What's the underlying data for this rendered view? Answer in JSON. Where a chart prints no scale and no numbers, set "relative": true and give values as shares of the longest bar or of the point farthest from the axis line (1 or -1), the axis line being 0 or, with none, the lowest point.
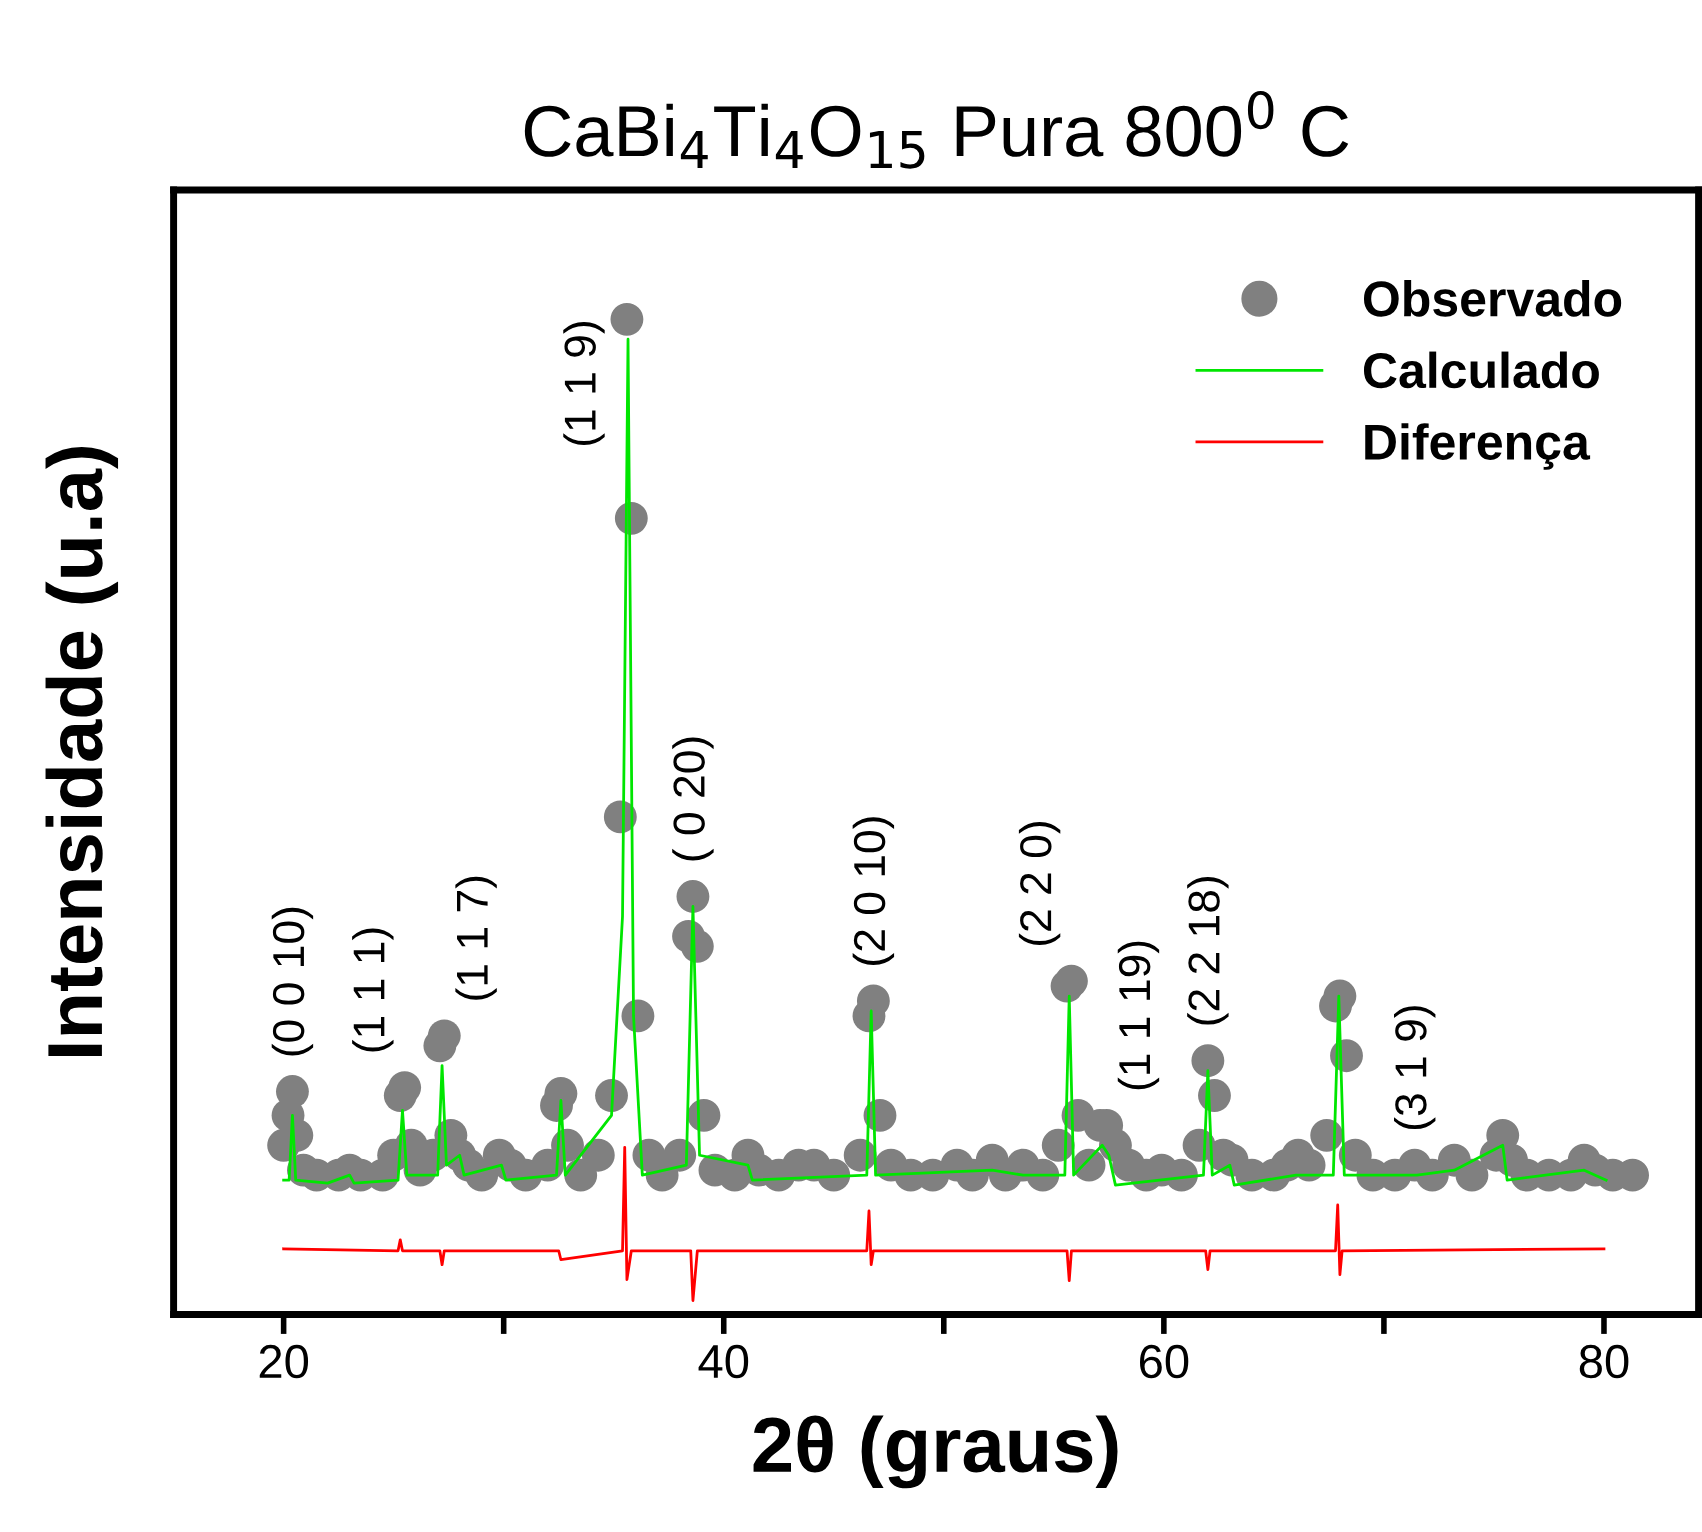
{
  "chart_data": {
    "type": "line",
    "title": "CaBi$_{4}$Ti$_{4}$O$_{15}$ Pura 800$^{0}$ C",
    "xlabel": "2θ (graus)",
    "ylabel": "Intensidade (u.a)",
    "relative": true,
    "xlim": [
      15,
      84.3
    ],
    "xticks": [
      20,
      {
        "value": 30,
        "label": null
      },
      40,
      {
        "value": 50,
        "label": null
      },
      60,
      {
        "value": 70,
        "label": null
      },
      80
    ],
    "tick_labels": "x",
    "grid": false,
    "legend": "top right",
    "series": [
      {
        "name": "Observado",
        "type": "scatter",
        "marker": "circle",
        "color": "#808080",
        "x": [
          20.0,
          20.2,
          20.4,
          20.6,
          20.9,
          21.5,
          22.5,
          23.0,
          23.5,
          24.5,
          25.0,
          25.3,
          25.5,
          25.8,
          26.2,
          26.8,
          27.1,
          27.3,
          27.6,
          28.0,
          28.4,
          29.0,
          29.8,
          30.3,
          31.0,
          32.0,
          32.4,
          32.6,
          32.9,
          33.5,
          34.3,
          34.9,
          35.3,
          35.6,
          35.8,
          36.1,
          36.6,
          37.2,
          38.0,
          38.4,
          38.6,
          38.8,
          39.1,
          39.6,
          40.5,
          41.1,
          41.6,
          42.5,
          43.4,
          44.1,
          45.0,
          46.2,
          46.6,
          46.8,
          47.1,
          47.6,
          48.5,
          49.5,
          50.6,
          51.3,
          52.2,
          52.8,
          53.6,
          54.5,
          55.2,
          55.6,
          55.8,
          56.1,
          56.6,
          57.1,
          57.4,
          57.8,
          58.4,
          59.2,
          59.9,
          60.8,
          61.6,
          62.0,
          62.3,
          62.7,
          63.1,
          64.0,
          65.0,
          65.6,
          66.1,
          66.6,
          67.4,
          67.8,
          68.0,
          68.3,
          68.7,
          69.5,
          70.5,
          71.4,
          72.2,
          73.2,
          74.0,
          75.1,
          75.4,
          75.8,
          76.5,
          77.5,
          78.5,
          79.1,
          79.6,
          80.4,
          81.3
        ],
        "values": [
          0.17,
          0.2,
          0.224,
          0.18,
          0.145,
          0.14,
          0.14,
          0.145,
          0.14,
          0.14,
          0.16,
          0.22,
          0.228,
          0.17,
          0.145,
          0.16,
          0.27,
          0.28,
          0.18,
          0.16,
          0.15,
          0.14,
          0.16,
          0.15,
          0.14,
          0.15,
          0.21,
          0.222,
          0.17,
          0.14,
          0.16,
          0.22,
          0.5,
          1.0,
          0.8,
          0.3,
          0.16,
          0.14,
          0.16,
          0.38,
          0.42,
          0.37,
          0.2,
          0.145,
          0.14,
          0.16,
          0.145,
          0.14,
          0.15,
          0.15,
          0.14,
          0.16,
          0.3,
          0.315,
          0.2,
          0.15,
          0.14,
          0.14,
          0.15,
          0.14,
          0.155,
          0.14,
          0.15,
          0.14,
          0.17,
          0.33,
          0.335,
          0.2,
          0.15,
          0.19,
          0.19,
          0.17,
          0.15,
          0.14,
          0.145,
          0.14,
          0.17,
          0.255,
          0.22,
          0.16,
          0.155,
          0.14,
          0.14,
          0.15,
          0.16,
          0.15,
          0.18,
          0.31,
          0.32,
          0.26,
          0.16,
          0.14,
          0.14,
          0.15,
          0.14,
          0.155,
          0.14,
          0.16,
          0.18,
          0.155,
          0.14,
          0.14,
          0.14,
          0.155,
          0.145,
          0.14,
          0.14
        ]
      },
      {
        "name": "Calculado",
        "color": "#00e600",
        "x": [
          20.0,
          20.25,
          20.4,
          20.55,
          22.0,
          23.0,
          23.2,
          25.2,
          25.4,
          25.6,
          27.0,
          27.2,
          27.4,
          28.0,
          28.2,
          29.9,
          30.1,
          32.4,
          32.6,
          32.8,
          34.9,
          35.4,
          35.65,
          35.9,
          36.3,
          38.3,
          38.6,
          38.9,
          41.1,
          41.3,
          46.5,
          46.7,
          46.9,
          52.2,
          53.6,
          55.5,
          55.7,
          55.9,
          57.2,
          57.5,
          57.8,
          61.8,
          62.0,
          62.2,
          63.0,
          63.2,
          66.0,
          67.7,
          67.95,
          68.2,
          71.5,
          73.2,
          75.4,
          75.6,
          79.1,
          80.1
        ],
        "values": [
          0.135,
          0.135,
          0.2,
          0.135,
          0.132,
          0.14,
          0.132,
          0.135,
          0.205,
          0.14,
          0.14,
          0.25,
          0.15,
          0.16,
          0.14,
          0.15,
          0.135,
          0.14,
          0.215,
          0.14,
          0.2,
          0.4,
          0.98,
          0.3,
          0.14,
          0.15,
          0.41,
          0.16,
          0.15,
          0.135,
          0.14,
          0.305,
          0.14,
          0.145,
          0.14,
          0.14,
          0.32,
          0.14,
          0.17,
          0.16,
          0.13,
          0.14,
          0.245,
          0.14,
          0.15,
          0.13,
          0.14,
          0.14,
          0.32,
          0.14,
          0.14,
          0.145,
          0.17,
          0.135,
          0.145,
          0.135
        ]
      },
      {
        "name": "Diferença",
        "color": "#ff0000",
        "x": [
          20.0,
          25.2,
          25.3,
          25.4,
          27.1,
          27.2,
          27.3,
          32.5,
          32.6,
          35.4,
          35.5,
          35.6,
          35.8,
          38.5,
          38.6,
          38.8,
          46.5,
          46.6,
          46.7,
          46.8,
          55.6,
          55.7,
          55.8,
          61.9,
          62.0,
          62.1,
          67.8,
          67.9,
          68.0,
          68.1,
          80.0
        ],
        "values": [
          0.066,
          0.064,
          0.075,
          0.064,
          0.064,
          0.05,
          0.064,
          0.064,
          0.055,
          0.064,
          0.168,
          0.035,
          0.064,
          0.064,
          0.014,
          0.064,
          0.064,
          0.104,
          0.05,
          0.064,
          0.064,
          0.034,
          0.064,
          0.064,
          0.045,
          0.064,
          0.064,
          0.11,
          0.04,
          0.064,
          0.066
        ]
      }
    ],
    "annotations": [
      {
        "text": "(0 0 10)",
        "x": 20.4,
        "y": 0.224
      },
      {
        "text": "(1 1 1)",
        "x": 25.5,
        "y": 0.228
      },
      {
        "text": "(1 1 7)",
        "x": 27.3,
        "y": 0.28
      },
      {
        "text": "(1 1 9)",
        "x": 35.6,
        "y": 1.0
      },
      {
        "text": "( 0 20)",
        "x": 38.6,
        "y": 0.42
      },
      {
        "text": "(2 0 10)",
        "x": 46.8,
        "y": 0.315
      },
      {
        "text": "(2 2 0)",
        "x": 55.8,
        "y": 0.335
      },
      {
        "text": "(1 1 19)",
        "x": 57.4,
        "y": 0.19
      },
      {
        "text": "(2 2 18)",
        "x": 62.0,
        "y": 0.255
      },
      {
        "text": "(3 1 9)",
        "x": 71.4,
        "y": 0.15
      }
    ]
  }
}
